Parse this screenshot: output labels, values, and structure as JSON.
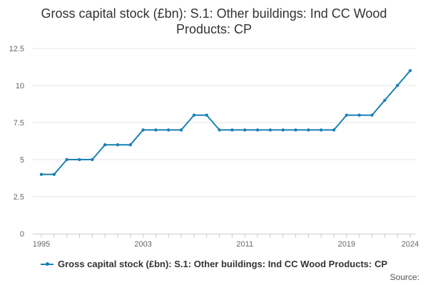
{
  "chart_data": {
    "type": "line",
    "title": "Gross capital stock (£bn): S.1: Other buildings: Ind CC Wood Products: CP",
    "xlabel": "",
    "ylabel": "",
    "x": [
      1995,
      1996,
      1997,
      1998,
      1999,
      2000,
      2001,
      2002,
      2003,
      2004,
      2005,
      2006,
      2007,
      2008,
      2009,
      2010,
      2011,
      2012,
      2013,
      2014,
      2015,
      2016,
      2017,
      2018,
      2019,
      2020,
      2021,
      2022,
      2023,
      2024
    ],
    "series": [
      {
        "name": "Gross capital stock (£bn): S.1: Other buildings: Ind CC Wood Products: CP",
        "color": "#1a80b6",
        "values": [
          4,
          4,
          5,
          5,
          5,
          6,
          6,
          6,
          7,
          7,
          7,
          7,
          8,
          8,
          7,
          7,
          7,
          7,
          7,
          7,
          7,
          7,
          7,
          7,
          8,
          8,
          8,
          9,
          10,
          11
        ]
      }
    ],
    "xlim": [
      1995,
      2024
    ],
    "ylim": [
      0,
      12.5
    ],
    "x_ticks": [
      "1995",
      "2003",
      "2011",
      "2019",
      "2024"
    ],
    "y_ticks": [
      "0",
      "2.5",
      "5",
      "7.5",
      "10",
      "12.5"
    ],
    "grid": true,
    "legend_position": "bottom"
  },
  "legend": {
    "label": "Gross capital stock (£bn): S.1: Other buildings: Ind CC Wood Products: CP"
  },
  "source": {
    "label": "Source:"
  }
}
